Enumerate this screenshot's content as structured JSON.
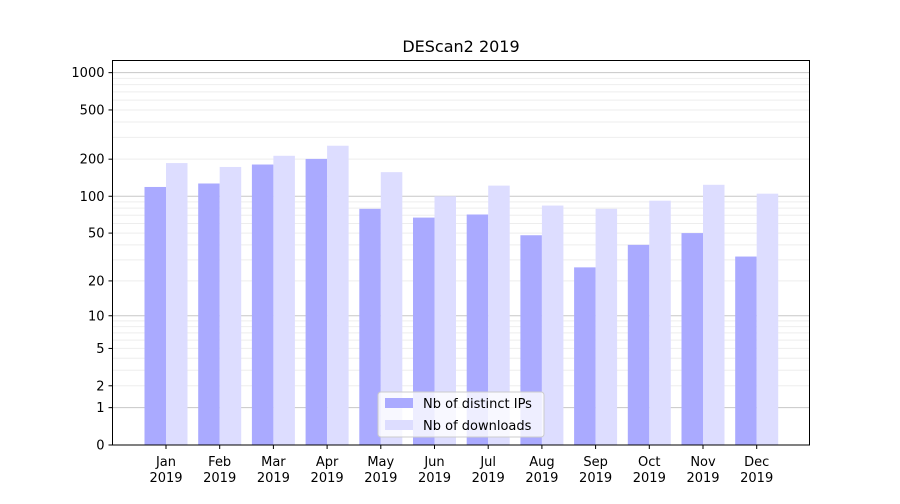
{
  "chart_data": {
    "type": "bar",
    "title": "DEScan2 2019",
    "xlabel": "",
    "ylabel": "",
    "yscale": "log(1+y)",
    "ylim": [
      0,
      1270
    ],
    "yticks": [
      0,
      1,
      2,
      5,
      10,
      20,
      50,
      100,
      200,
      500,
      1000
    ],
    "grid": true,
    "legend_position": "bottom-center",
    "categories": [
      "Jan\n2019",
      "Feb\n2019",
      "Mar\n2019",
      "Apr\n2019",
      "May\n2019",
      "Jun\n2019",
      "Jul\n2019",
      "Aug\n2019",
      "Sep\n2019",
      "Oct\n2019",
      "Nov\n2019",
      "Dec\n2019"
    ],
    "series": [
      {
        "name": "Nb of distinct IPs",
        "color": "#aaaaff",
        "values": [
          119,
          127,
          181,
          201,
          79,
          67,
          71,
          48,
          26,
          40,
          50,
          32
        ]
      },
      {
        "name": "Nb of downloads",
        "color": "#ddddff",
        "values": [
          186,
          173,
          213,
          257,
          157,
          100,
          122,
          84,
          79,
          92,
          124,
          105
        ]
      }
    ]
  }
}
